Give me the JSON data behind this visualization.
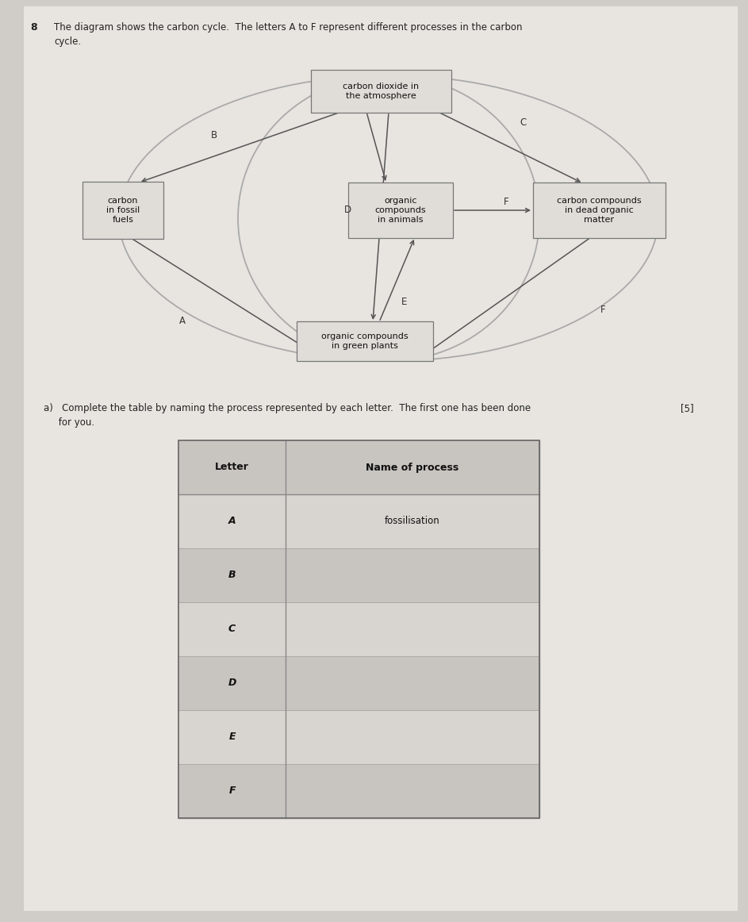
{
  "title_number": "8",
  "title_line1": "The diagram shows the carbon cycle.  The letters A to F represent different processes in the carbon",
  "title_line2": "cycle.",
  "bg_color": "#d0cdc8",
  "page_color": "#e8e5e0",
  "box_fill": "#e0ddd8",
  "box_edge": "#777777",
  "arrow_color": "#555555",
  "ellipse_color": "#aaaaaa",
  "node_atm": "carbon dioxide in\nthe atmosphere",
  "node_fossil": "carbon\nin fossil\nfuels",
  "node_animals": "organic\ncompounds\nin animals",
  "node_dead": "carbon compounds\nin dead organic\nmatter",
  "node_plants": "organic compounds\nin green plants",
  "question_a": "a)   Complete the table by naming the process represented by each letter.  The first one has been done",
  "question_b": "     for you.",
  "marks": "[5]",
  "table_letters": [
    "A",
    "B",
    "C",
    "D",
    "E",
    "F"
  ],
  "table_process_A": "fossilisation",
  "col_letter": "Letter",
  "col_process": "Name of process",
  "table_header_bg": "#c8c5c0",
  "table_row_bg1": "#d8d5d0",
  "table_row_bg2": "#c8c5c0"
}
